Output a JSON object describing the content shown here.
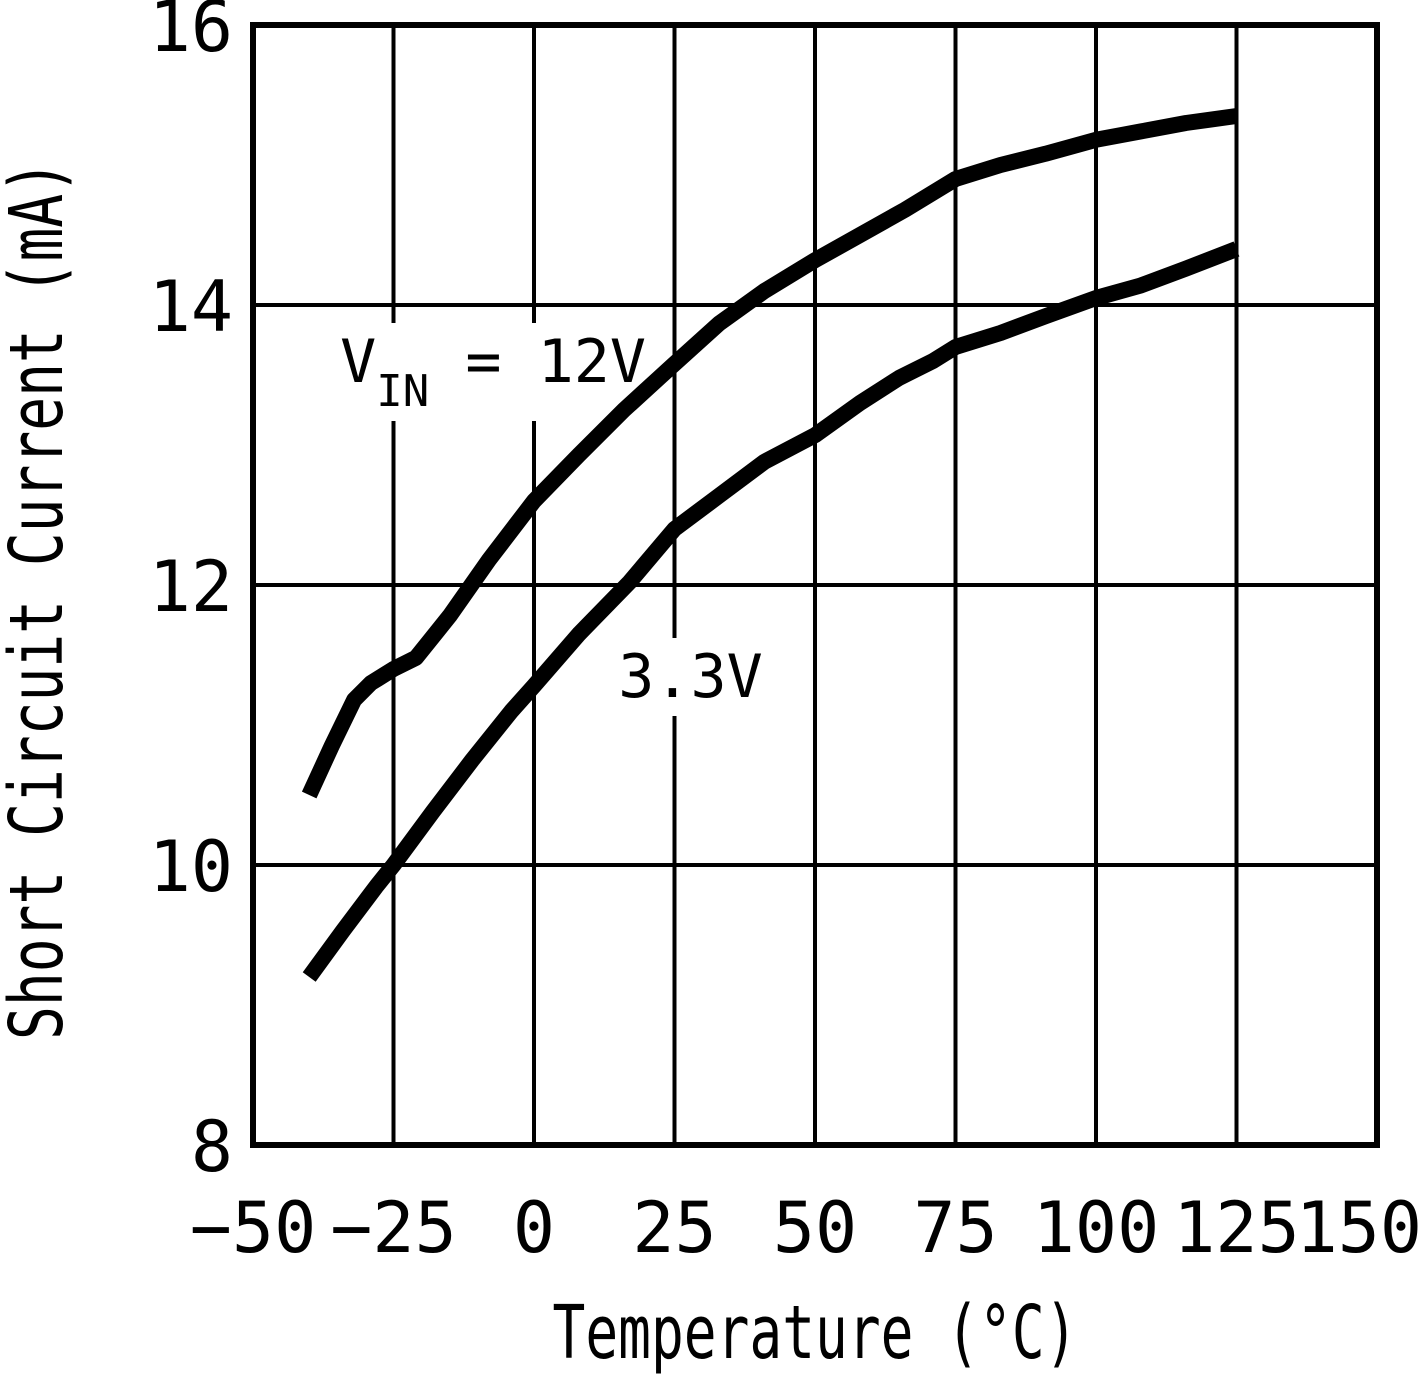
{
  "chart_data": {
    "type": "line",
    "title": "",
    "xlabel": "Temperature (°C)",
    "ylabel": "Short Circuit Current (mA)",
    "xlim": [
      -50,
      150
    ],
    "ylim": [
      8,
      16
    ],
    "grid": "on",
    "legend_position": "none",
    "background_color": "#ffffff",
    "line_color": "#000000",
    "grid_color": "#000000",
    "x_ticks": {
      "values": [
        -50,
        -25,
        0,
        25,
        50,
        75,
        100,
        125,
        150
      ],
      "labels": [
        "−50",
        "−25",
        "0",
        "25",
        "50",
        "75",
        "100",
        "125",
        "150"
      ]
    },
    "y_ticks": {
      "values": [
        8,
        10,
        12,
        14,
        16
      ],
      "labels": [
        "8",
        "10",
        "12",
        "14",
        "16"
      ]
    },
    "series": [
      {
        "id": "vin-12v",
        "name": "VIN = 12V",
        "points": [
          [
            -40,
            10.5
          ],
          [
            -36,
            10.85
          ],
          [
            -32,
            11.18
          ],
          [
            -29,
            11.3
          ],
          [
            -25,
            11.4
          ],
          [
            -21,
            11.48
          ],
          [
            -15,
            11.78
          ],
          [
            -8,
            12.18
          ],
          [
            0,
            12.6
          ],
          [
            8,
            12.93
          ],
          [
            16,
            13.25
          ],
          [
            25,
            13.58
          ],
          [
            33,
            13.87
          ],
          [
            41,
            14.1
          ],
          [
            50,
            14.32
          ],
          [
            58,
            14.5
          ],
          [
            66,
            14.68
          ],
          [
            75,
            14.9
          ],
          [
            83,
            15.0
          ],
          [
            91,
            15.08
          ],
          [
            100,
            15.18
          ],
          [
            108,
            15.24
          ],
          [
            116,
            15.3
          ],
          [
            125,
            15.35
          ]
        ]
      },
      {
        "id": "3v3",
        "name": "3.3V",
        "points": [
          [
            -40,
            9.2
          ],
          [
            -34,
            9.53
          ],
          [
            -28,
            9.85
          ],
          [
            -25,
            10.0
          ],
          [
            -18,
            10.38
          ],
          [
            -11,
            10.75
          ],
          [
            -4,
            11.1
          ],
          [
            0,
            11.28
          ],
          [
            8,
            11.65
          ],
          [
            17,
            12.02
          ],
          [
            25,
            12.4
          ],
          [
            33,
            12.64
          ],
          [
            41,
            12.88
          ],
          [
            50,
            13.07
          ],
          [
            58,
            13.3
          ],
          [
            65,
            13.48
          ],
          [
            71,
            13.6
          ],
          [
            75,
            13.7
          ],
          [
            83,
            13.8
          ],
          [
            91,
            13.92
          ],
          [
            100,
            14.05
          ],
          [
            108,
            14.14
          ],
          [
            116,
            14.26
          ],
          [
            125,
            14.4
          ]
        ]
      }
    ],
    "annotations": [
      {
        "id": "label-vin-12v",
        "x": -34.5,
        "y": 13.45,
        "parts": [
          {
            "text": "V",
            "sub": false
          },
          {
            "text": "IN",
            "sub": true
          },
          {
            "text": " = 12V",
            "sub": false
          }
        ]
      },
      {
        "id": "label-3v3",
        "x": 15,
        "y": 11.2,
        "parts": [
          {
            "text": "3.3V",
            "sub": false
          }
        ]
      }
    ]
  }
}
